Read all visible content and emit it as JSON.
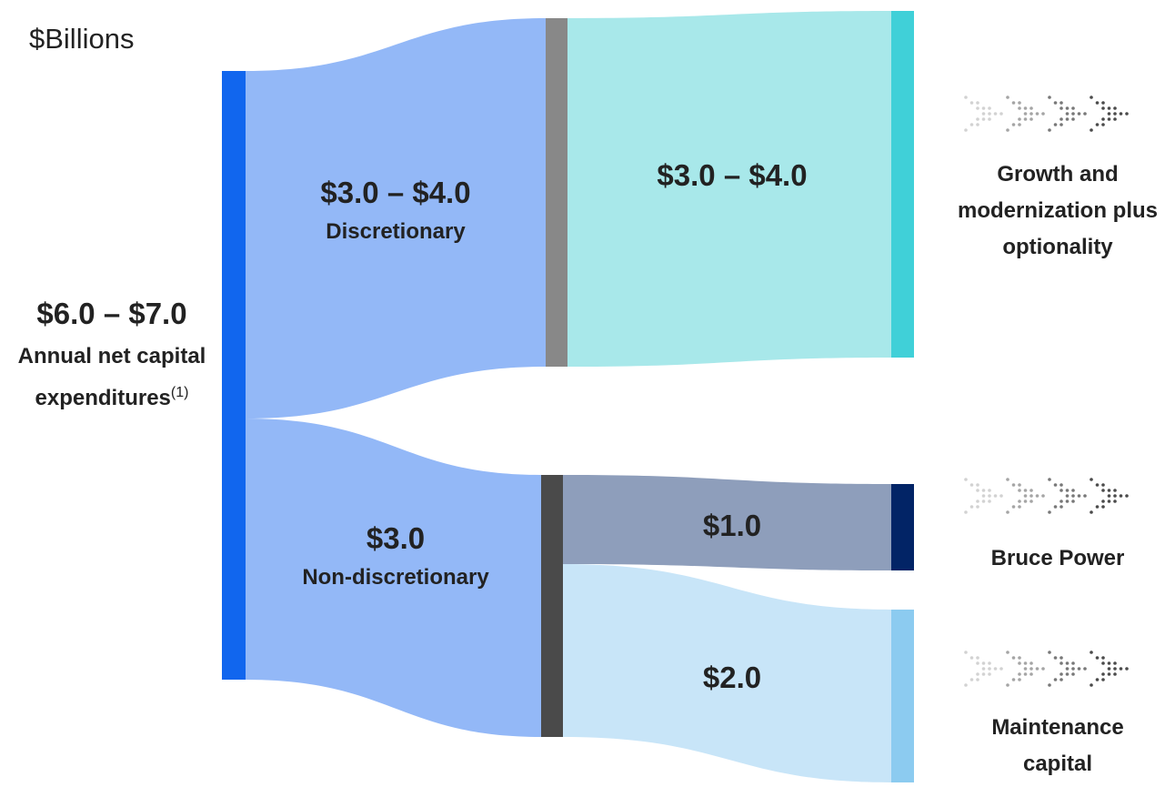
{
  "unit": "$Billions",
  "nodes": [
    {
      "value": "$6.0 – $7.0",
      "label": "Annual net capital expenditures",
      "footnote": "(1)"
    },
    {
      "value": "$3.0 – $4.0",
      "label": "Discretionary"
    },
    {
      "value": "$3.0",
      "label": "Non-discretionary"
    },
    {
      "value": "$3.0 – $4.0"
    },
    {
      "value": "$1.0"
    },
    {
      "value": "$2.0"
    }
  ],
  "outcomes": [
    {
      "label": "Growth and modernization plus optionality"
    },
    {
      "label": "Bruce Power"
    },
    {
      "label": "Maintenance capital"
    }
  ]
}
